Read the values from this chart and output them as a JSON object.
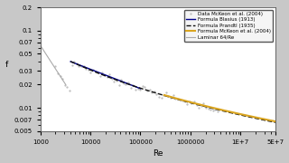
{
  "title": "",
  "xlabel": "Re",
  "ylabel": "f",
  "xlim": [
    1000,
    50000000.0
  ],
  "ylim": [
    0.005,
    0.2
  ],
  "fig_bg_color": "#c8c8c8",
  "plot_bg_color": "#ffffff",
  "legend_entries": [
    "Data McKeon et al. (2004)",
    "Formula Blasius (1913)",
    "Formula Prandtl (1935)",
    "Formula McKeon et al. (2004)",
    "Laminar 64/Re"
  ],
  "line_colors": {
    "blasius": "#00008B",
    "prandtl": "#111111",
    "mckeon": "#DAA520",
    "laminar": "#aaaaaa",
    "data": "#bbbbbb"
  },
  "yticks": [
    0.005,
    0.007,
    0.01,
    0.02,
    0.03,
    0.05,
    0.07,
    0.1,
    0.2
  ],
  "xticks": [
    1000,
    10000,
    100000,
    1000000,
    10000000.0,
    50000000.0
  ],
  "xtick_labels": [
    "1000",
    "10000",
    "100000",
    "1000000",
    "1E+7",
    "5E+7"
  ],
  "ytick_labels": [
    "0.005",
    "0.007",
    "0.01",
    "0.02",
    "0.03",
    "0.05",
    "0.07",
    "0.1",
    "0.2"
  ],
  "re_blasius_range": [
    4000,
    100000
  ],
  "re_prandtl_range": [
    4000,
    50000000.0
  ],
  "re_mckeon_range": [
    300000,
    50000000.0
  ],
  "re_lam_range": [
    1000,
    3200
  ],
  "re_data_range": [
    2000,
    3500000
  ]
}
